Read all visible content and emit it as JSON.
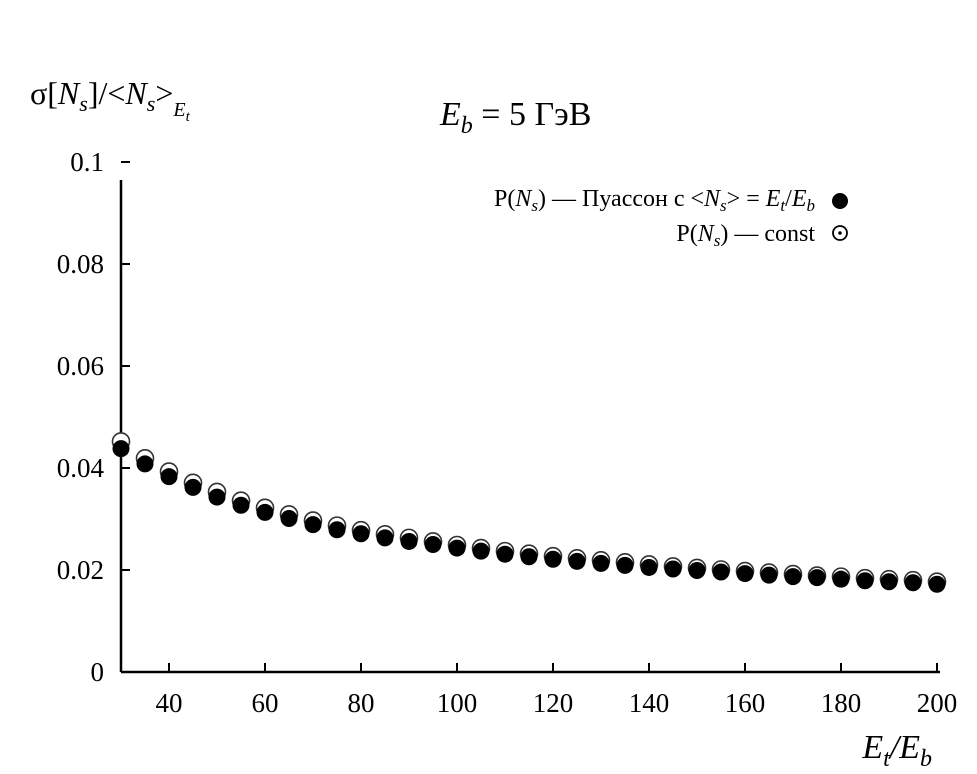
{
  "chart_data": {
    "type": "scatter",
    "title_parts": {
      "var": "E",
      "sub": "b",
      "rest": " = 5 ГэВ"
    },
    "ylabel_parts": {
      "lead": "σ[",
      "n1": "N",
      "s1": "s",
      "mid": "]/<",
      "n2": "N",
      "s2": "s",
      "close": ">",
      "sub": "E",
      "subsub": "t"
    },
    "xlabel_parts": {
      "n": "E",
      "ns": "t",
      "sep": "/",
      "d": "E",
      "ds": "b"
    },
    "xlim": [
      30,
      200
    ],
    "ylim": [
      0,
      0.1
    ],
    "x_ticks": [
      40,
      60,
      80,
      100,
      120,
      140,
      160,
      180,
      200
    ],
    "x_tick_labels": [
      "40",
      "60",
      "80",
      "100",
      "120",
      "140",
      "160",
      "180",
      "200"
    ],
    "y_ticks": [
      0,
      0.02,
      0.04,
      0.06,
      0.08,
      0.1
    ],
    "y_tick_labels": [
      "0",
      "0.02",
      "0.04",
      "0.06",
      "0.08",
      "0.1"
    ],
    "legend_position": "top-right",
    "legend": [
      {
        "p": "P(",
        "n": "N",
        "s": "s",
        "text": ") — Пуассон с <",
        "n2": "N",
        "s2": "s",
        "text2": "> = ",
        "e1": "E",
        "e1s": "t",
        "slash": "/",
        "e2": "E",
        "e2s": "b"
      },
      {
        "p": "P(",
        "n": "N",
        "s": "s",
        "text": ") — const"
      }
    ],
    "x": [
      30,
      35,
      40,
      45,
      50,
      55,
      60,
      65,
      70,
      75,
      80,
      85,
      90,
      95,
      100,
      105,
      110,
      115,
      120,
      125,
      130,
      135,
      140,
      145,
      150,
      155,
      160,
      165,
      170,
      175,
      180,
      185,
      190,
      195,
      200
    ],
    "series": [
      {
        "marker": "filled-circle",
        "values": [
          0.0438,
          0.0408,
          0.0383,
          0.0362,
          0.0343,
          0.0327,
          0.0313,
          0.0301,
          0.0289,
          0.0279,
          0.0271,
          0.0263,
          0.0256,
          0.025,
          0.0243,
          0.0237,
          0.0231,
          0.0226,
          0.0221,
          0.0217,
          0.0213,
          0.0209,
          0.0205,
          0.0202,
          0.0199,
          0.0196,
          0.0193,
          0.019,
          0.0187,
          0.0185,
          0.0182,
          0.0179,
          0.0177,
          0.0175,
          0.0172
        ]
      },
      {
        "marker": "open-circle-dot",
        "values": [
          0.0452,
          0.0419,
          0.0393,
          0.0371,
          0.0353,
          0.0336,
          0.0322,
          0.0309,
          0.0297,
          0.0287,
          0.0278,
          0.027,
          0.0263,
          0.0256,
          0.0249,
          0.0243,
          0.0237,
          0.0232,
          0.0227,
          0.0223,
          0.0219,
          0.0215,
          0.0211,
          0.0207,
          0.0204,
          0.0201,
          0.0198,
          0.0195,
          0.0192,
          0.0189,
          0.0187,
          0.0184,
          0.0182,
          0.018,
          0.0177
        ]
      }
    ]
  }
}
